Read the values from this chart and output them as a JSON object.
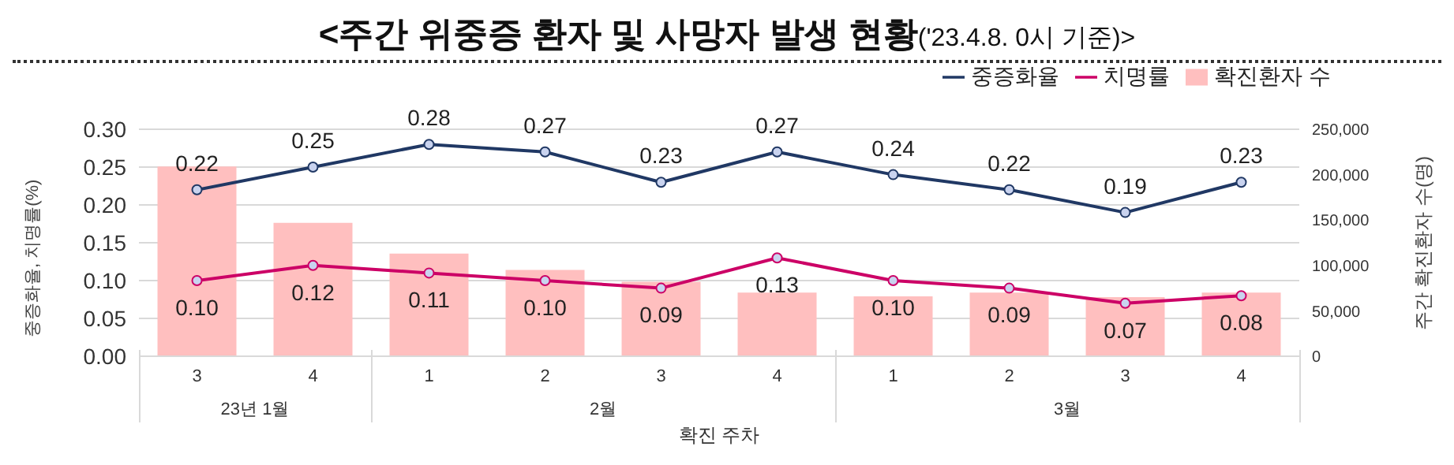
{
  "chart_data": {
    "type": "bar",
    "title": "<주간 위중증 환자 및 사망자 발생 현황",
    "subtitle": "('23.4.8. 0시 기준)>",
    "xlabel": "확진 주차",
    "ylabel": "중증화율, 치명률(%)",
    "y2label": "주간 확진환자 수(명)",
    "annotations": [
      "23년 1월",
      "2월",
      "3월"
    ],
    "categories": [
      "3",
      "4",
      "1",
      "2",
      "3",
      "4",
      "1",
      "2",
      "3",
      "4"
    ],
    "series": [
      {
        "name": "확진환자 수",
        "axis": "y2",
        "color": "#ffbfbf",
        "values": [
          209000,
          147000,
          113000,
          95000,
          82000,
          70000,
          66000,
          70000,
          65000,
          70000
        ]
      },
      {
        "name": "중증화율",
        "type": "line",
        "color": "#203864",
        "values": [
          0.22,
          0.25,
          0.28,
          0.27,
          0.23,
          0.27,
          0.24,
          0.22,
          0.19,
          0.23
        ],
        "value_labels": [
          "0.22",
          "0.25",
          "0.28",
          "0.27",
          "0.23",
          "0.27",
          "0.24",
          "0.22",
          "0.19",
          "0.23"
        ]
      },
      {
        "name": "치명률",
        "type": "line",
        "color": "#cc0066",
        "values": [
          0.1,
          0.12,
          0.11,
          0.1,
          0.09,
          0.13,
          0.1,
          0.09,
          0.07,
          0.08
        ],
        "value_labels": [
          "0.10",
          "0.12",
          "0.11",
          "0.10",
          "0.09",
          "0.13",
          "0.10",
          "0.09",
          "0.07",
          "0.08"
        ]
      }
    ],
    "ylim": [
      0,
      0.3
    ],
    "yticks": [
      {
        "value": 0,
        "label": "0.00"
      },
      {
        "value": 0.05,
        "label": "0.05"
      },
      {
        "value": 0.1,
        "label": "0.10"
      },
      {
        "value": 0.15,
        "label": "0.15"
      },
      {
        "value": 0.2,
        "label": "0.20"
      },
      {
        "value": 0.25,
        "label": "0.25"
      },
      {
        "value": 0.3,
        "label": "0.30"
      }
    ],
    "y2lim": [
      0,
      250000
    ],
    "y2ticks": [
      0,
      {
        "value": 50000,
        "label": "50,000"
      },
      {
        "value": 100000,
        "label": "100,000"
      },
      {
        "value": 150000,
        "label": "150,000"
      },
      {
        "value": 200000,
        "label": "200,000"
      },
      {
        "value": 250000,
        "label": "250,000"
      }
    ],
    "grid": "y",
    "legend": "top right",
    "marker": "circle",
    "line_style": "solid"
  }
}
